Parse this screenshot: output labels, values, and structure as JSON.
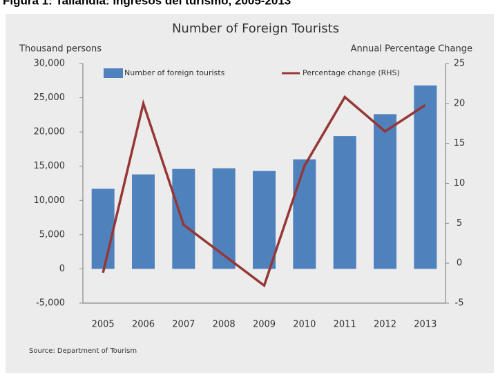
{
  "caption": "Figura 1: Tailandia: ingresos del turismo, 2005-2013",
  "chart_data": {
    "type": "bar-line",
    "title": "Number of Foreign Tourists",
    "y_label": "Thousand persons",
    "y2_label": "Annual Percentage Change",
    "categories": [
      "2005",
      "2006",
      "2007",
      "2008",
      "2009",
      "2010",
      "2011",
      "2012",
      "2013"
    ],
    "series": [
      {
        "name": "Number of foreign tourists",
        "type": "bar",
        "color": "#4f81bd",
        "values": [
          11700,
          13800,
          14600,
          14700,
          14300,
          16000,
          19400,
          22600,
          26800
        ]
      },
      {
        "name": "Percentage change (RHS)",
        "type": "line",
        "axis": "y2",
        "color": "#953735",
        "values": [
          -1.2,
          20.0,
          4.8,
          1.0,
          -2.8,
          12.2,
          20.8,
          16.5,
          19.8
        ]
      }
    ],
    "ylim": [
      -5000,
      30000
    ],
    "yticks": [
      {
        "value": -5000,
        "label": "-5,000"
      },
      0,
      {
        "value": 5000,
        "label": "5,000"
      },
      {
        "value": 10000,
        "label": "10,000"
      },
      {
        "value": 15000,
        "label": "15,000"
      },
      {
        "value": 20000,
        "label": "20,000"
      },
      {
        "value": 25000,
        "label": "25,000"
      },
      {
        "value": 30000,
        "label": "30,000"
      }
    ],
    "y2lim": [
      -5,
      25
    ],
    "y2ticks": [
      -5,
      0,
      5,
      10,
      15,
      20,
      25
    ],
    "legend": "top",
    "source": "Source: Department of Tourism"
  }
}
